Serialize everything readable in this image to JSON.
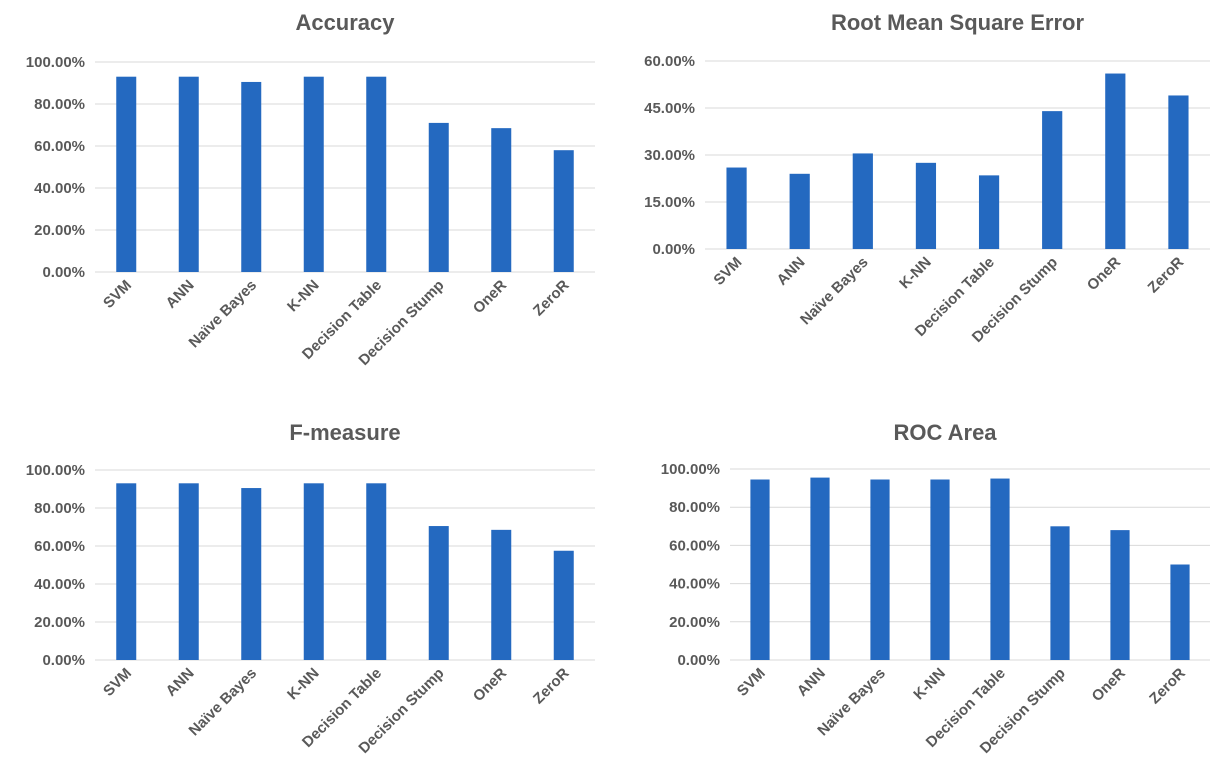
{
  "chart_data": [
    {
      "type": "bar",
      "title": "Accuracy",
      "categories": [
        "SVM",
        "ANN",
        "Naïve Bayes",
        "K-NN",
        "Decision Table",
        "Decision Stump",
        "OneR",
        "ZeroR"
      ],
      "values": [
        93,
        93,
        90.5,
        93,
        93,
        71,
        68.5,
        58
      ],
      "ylim": [
        0,
        100
      ],
      "yticks": [
        "0.00%",
        "20.00%",
        "40.00%",
        "60.00%",
        "80.00%",
        "100.00%"
      ],
      "grid": true,
      "color": "#2469c0"
    },
    {
      "type": "bar",
      "title": "Root Mean Square Error",
      "categories": [
        "SVM",
        "ANN",
        "Naïve Bayes",
        "K-NN",
        "Decision Table",
        "Decision Stump",
        "OneR",
        "ZeroR"
      ],
      "values": [
        26,
        24,
        30.5,
        27.5,
        23.5,
        44,
        56,
        49
      ],
      "ylim": [
        0,
        60
      ],
      "yticks": [
        "0.00%",
        "15.00%",
        "30.00%",
        "45.00%",
        "60.00%"
      ],
      "grid": true,
      "color": "#2469c0"
    },
    {
      "type": "bar",
      "title": "F-measure",
      "categories": [
        "SVM",
        "ANN",
        "Naïve Bayes",
        "K-NN",
        "Decision Table",
        "Decision Stump",
        "OneR",
        "ZeroR"
      ],
      "values": [
        93,
        93,
        90.5,
        93,
        93,
        70.5,
        68.5,
        57.5
      ],
      "ylim": [
        0,
        100
      ],
      "yticks": [
        "0.00%",
        "20.00%",
        "40.00%",
        "60.00%",
        "80.00%",
        "100.00%"
      ],
      "grid": true,
      "color": "#2469c0"
    },
    {
      "type": "bar",
      "title": "ROC Area",
      "categories": [
        "SVM",
        "ANN",
        "Naïve Bayes",
        "K-NN",
        "Decision Table",
        "Decision Stump",
        "OneR",
        "ZeroR"
      ],
      "values": [
        94.5,
        95.5,
        94.5,
        94.5,
        95,
        70,
        68,
        50
      ],
      "ylim": [
        0,
        100
      ],
      "yticks": [
        "0.00%",
        "20.00%",
        "40.00%",
        "60.00%",
        "80.00%",
        "100.00%"
      ],
      "grid": true,
      "color": "#2469c0"
    }
  ]
}
